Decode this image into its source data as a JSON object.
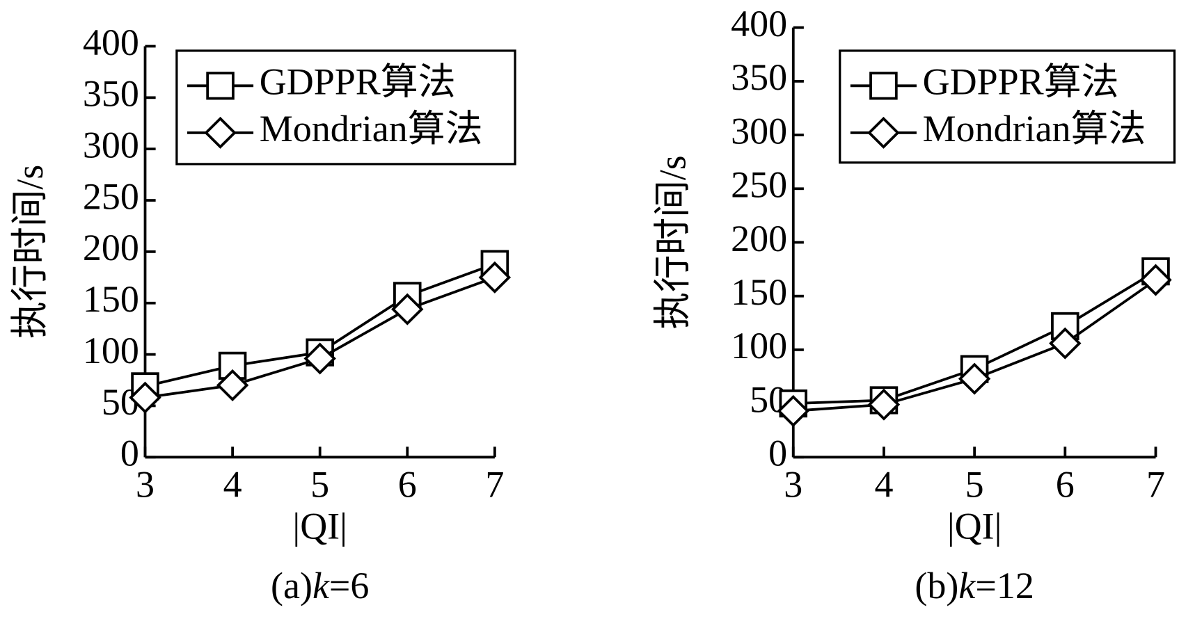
{
  "chart_data": [
    {
      "type": "line",
      "caption": [
        "(a)",
        "k",
        "=6"
      ],
      "xlabel": "|QI|",
      "ylabel": "执行时间/s",
      "x": [
        3,
        4,
        5,
        6,
        7
      ],
      "xlim": [
        3,
        7
      ],
      "xticks": [
        3,
        4,
        5,
        6,
        7
      ],
      "ylim": [
        0,
        400
      ],
      "yticks": [
        0,
        50,
        100,
        150,
        200,
        250,
        300,
        350,
        400
      ],
      "legend": "upper right",
      "series": [
        {
          "name": "GDPPR算法",
          "color": "#000000",
          "marker": "square",
          "values": [
            69,
            89,
            102,
            157,
            188
          ]
        },
        {
          "name": "Mondrian算法",
          "color": "#000000",
          "marker": "diamond",
          "values": [
            58,
            70,
            96,
            144,
            175
          ]
        }
      ]
    },
    {
      "type": "line",
      "caption": [
        "(b)",
        "k",
        "=12"
      ],
      "xlabel": "|QI|",
      "ylabel": "执行时间/s",
      "x": [
        3,
        4,
        5,
        6,
        7
      ],
      "xlim": [
        3,
        7
      ],
      "xticks": [
        3,
        4,
        5,
        6,
        7
      ],
      "ylim": [
        0,
        400
      ],
      "yticks": [
        0,
        50,
        100,
        150,
        200,
        250,
        300,
        350,
        400
      ],
      "legend": "upper right",
      "series": [
        {
          "name": "GDPPR算法",
          "color": "#000000",
          "marker": "square",
          "values": [
            50,
            53,
            82,
            122,
            173
          ]
        },
        {
          "name": "Mondrian算法",
          "color": "#000000",
          "marker": "diamond",
          "values": [
            43,
            49,
            73,
            106,
            165
          ]
        }
      ]
    }
  ]
}
